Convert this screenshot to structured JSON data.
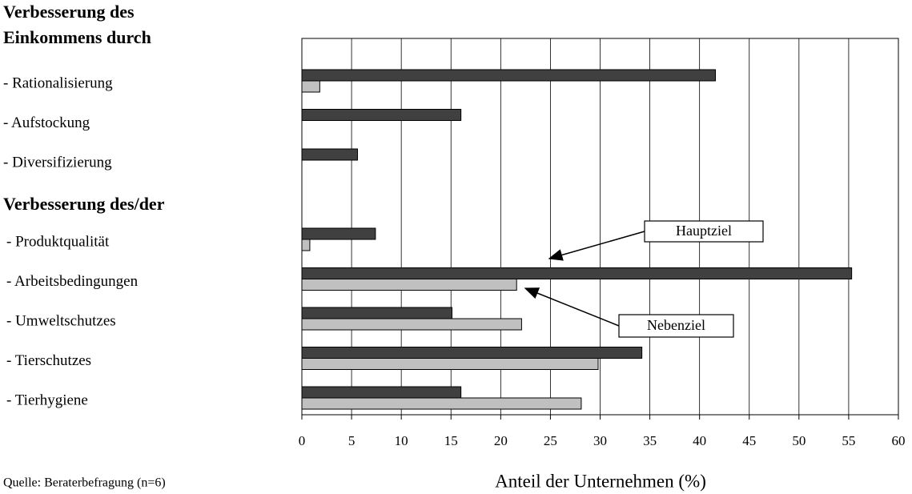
{
  "chart_data": {
    "type": "bar",
    "orientation": "horizontal",
    "headings": [
      [
        "Verbesserung des",
        "Einkommens durch"
      ],
      [
        "Verbesserung des/der"
      ]
    ],
    "categories": [
      "- Rationalisierung",
      "- Aufstockung",
      "- Diversifizierung",
      null,
      "- Produktqualität",
      "- Arbeitsbedingungen",
      "- Umweltschutzes",
      "- Tierschutzes",
      "- Tierhygiene"
    ],
    "series": [
      {
        "name": "Hauptziel",
        "color": "#404040",
        "values": [
          41.6,
          16.0,
          5.6,
          null,
          7.4,
          55.3,
          15.1,
          34.2,
          16.0
        ]
      },
      {
        "name": "Nebenziel",
        "color": "#c0c0c0",
        "values": [
          1.8,
          null,
          null,
          null,
          0.8,
          21.6,
          22.1,
          29.8,
          28.1
        ]
      }
    ],
    "xlim": [
      0,
      60
    ],
    "xticks": [
      0,
      5,
      10,
      15,
      20,
      25,
      30,
      35,
      40,
      45,
      50,
      55,
      60
    ],
    "grid": true,
    "x_label": "Anteil der Unternehmen (%)",
    "source": "Quelle: Beraterbefragung (n=6)"
  }
}
